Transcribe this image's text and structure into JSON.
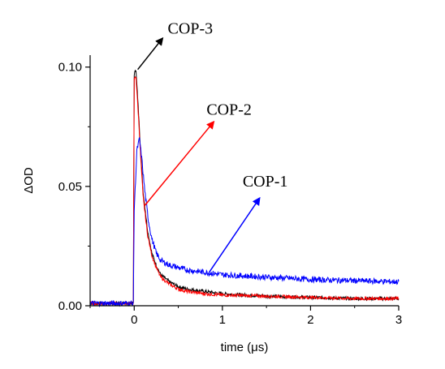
{
  "chart_data": {
    "type": "line",
    "title": "",
    "xlabel": "time (μs)",
    "ylabel": "ΔOD",
    "xlim": [
      -0.5,
      3
    ],
    "ylim": [
      0,
      0.105
    ],
    "x_ticks": [
      0,
      1,
      2,
      3
    ],
    "x_tick_labels": [
      "0",
      "1",
      "2",
      "3"
    ],
    "y_ticks": [
      0.0,
      0.05,
      0.1
    ],
    "y_tick_labels": [
      "0.00",
      "0.05",
      "0.10"
    ],
    "grid": false,
    "legend": "none",
    "series": [
      {
        "name": "COP-3",
        "color": "#000000",
        "x": [
          -0.5,
          -0.01,
          0.0,
          0.02,
          0.05,
          0.08,
          0.1,
          0.15,
          0.2,
          0.25,
          0.3,
          0.4,
          0.5,
          0.6,
          0.8,
          1.0,
          1.5,
          2.0,
          2.5,
          3.0
        ],
        "y": [
          0.001,
          0.001,
          0.097,
          0.099,
          0.08,
          0.06,
          0.048,
          0.032,
          0.022,
          0.017,
          0.013,
          0.01,
          0.008,
          0.007,
          0.006,
          0.005,
          0.004,
          0.0035,
          0.003,
          0.003
        ]
      },
      {
        "name": "COP-2",
        "color": "#ff0000",
        "x": [
          -0.5,
          -0.01,
          0.0,
          0.02,
          0.05,
          0.08,
          0.1,
          0.15,
          0.2,
          0.25,
          0.3,
          0.4,
          0.5,
          0.6,
          0.8,
          1.0,
          1.5,
          2.0,
          2.5,
          3.0
        ],
        "y": [
          0.001,
          0.001,
          0.095,
          0.096,
          0.078,
          0.058,
          0.046,
          0.03,
          0.021,
          0.016,
          0.012,
          0.009,
          0.007,
          0.006,
          0.005,
          0.0045,
          0.004,
          0.0035,
          0.003,
          0.003
        ]
      },
      {
        "name": "COP-1",
        "color": "#0000ff",
        "x": [
          -0.5,
          -0.01,
          0.0,
          0.03,
          0.06,
          0.09,
          0.12,
          0.16,
          0.2,
          0.25,
          0.3,
          0.4,
          0.5,
          0.6,
          0.8,
          1.0,
          1.5,
          2.0,
          2.5,
          3.0
        ],
        "y": [
          0.001,
          0.001,
          0.04,
          0.065,
          0.07,
          0.06,
          0.048,
          0.036,
          0.028,
          0.022,
          0.019,
          0.017,
          0.016,
          0.015,
          0.014,
          0.013,
          0.012,
          0.011,
          0.0105,
          0.01
        ]
      }
    ],
    "annotations": [
      {
        "text": "COP-3",
        "color": "#000000",
        "text_at": [
          0.38,
          0.114
        ],
        "arrow_from": [
          0.04,
          0.099
        ],
        "arrow_to": [
          0.32,
          0.112
        ]
      },
      {
        "text": "COP-2",
        "color": "#ff0000",
        "text_at": [
          0.82,
          0.08
        ],
        "arrow_from": [
          0.12,
          0.042
        ],
        "arrow_to": [
          0.9,
          0.077
        ]
      },
      {
        "text": "COP-1",
        "color": "#0000ff",
        "text_at": [
          1.23,
          0.05
        ],
        "arrow_from": [
          0.85,
          0.014
        ],
        "arrow_to": [
          1.42,
          0.045
        ]
      }
    ]
  }
}
